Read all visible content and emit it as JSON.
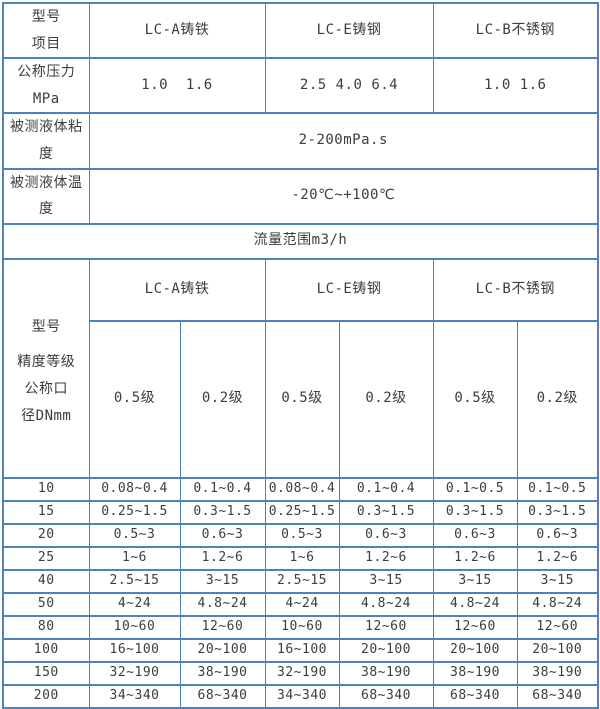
{
  "colors": {
    "border": "#4f81bd",
    "text": "#3d3d3d",
    "background": "#ffffff"
  },
  "section1": {
    "corner_label": "型号\n项目",
    "columns": [
      "LC-A铸铁",
      "LC-E铸钢",
      "LC-B不锈钢"
    ],
    "pressure": {
      "label": "公称压力\nMPa",
      "values": [
        "1.0  1.6",
        "2.5 4.0 6.4",
        "1.0 1.6"
      ]
    },
    "viscosity": {
      "label": "被测液体粘\n度",
      "value": "2-200mPa.s"
    },
    "temperature": {
      "label": "被测液体温\n度",
      "value": "-20℃~+100℃"
    }
  },
  "flow_banner": "流量范围m3/h",
  "section2": {
    "model_label": "型号",
    "accuracy_label": "精度等级\n公称口\n径DNmm",
    "columns": [
      "LC-A铸铁",
      "LC-E铸钢",
      "LC-B不锈钢"
    ],
    "accuracy_classes": [
      "0.5级",
      "0.2级",
      "0.5级",
      "0.2级",
      "0.5级",
      "0.2级"
    ],
    "dn_rows": [
      {
        "dn": "10",
        "values": [
          "0.08~0.4",
          "0.1~0.4",
          "0.08~0.4",
          "0.1~0.4",
          "0.1~0.5",
          "0.1~0.5"
        ]
      },
      {
        "dn": "15",
        "values": [
          "0.25~1.5",
          "0.3~1.5",
          "0.25~1.5",
          "0.3~1.5",
          "0.3~1.5",
          "0.3~1.5"
        ]
      },
      {
        "dn": "20",
        "values": [
          "0.5~3",
          "0.6~3",
          "0.5~3",
          "0.6~3",
          "0.6~3",
          "0.6~3"
        ]
      },
      {
        "dn": "25",
        "values": [
          "1~6",
          "1.2~6",
          "1~6",
          "1.2~6",
          "1.2~6",
          "1.2~6"
        ]
      },
      {
        "dn": "40",
        "values": [
          "2.5~15",
          "3~15",
          "2.5~15",
          "3~15",
          "3~15",
          "3~15"
        ]
      },
      {
        "dn": "50",
        "values": [
          "4~24",
          "4.8~24",
          "4~24",
          "4.8~24",
          "4.8~24",
          "4.8~24"
        ]
      },
      {
        "dn": "80",
        "values": [
          "10~60",
          "12~60",
          "10~60",
          "12~60",
          "12~60",
          "12~60"
        ]
      },
      {
        "dn": "100",
        "values": [
          "16~100",
          "20~100",
          "16~100",
          "20~100",
          "20~100",
          "20~100"
        ]
      },
      {
        "dn": "150",
        "values": [
          "32~190",
          "38~190",
          "32~190",
          "38~190",
          "38~190",
          "38~190"
        ]
      },
      {
        "dn": "200",
        "values": [
          "34~340",
          "68~340",
          "34~340",
          "68~340",
          "68~340",
          "68~340"
        ]
      }
    ]
  }
}
